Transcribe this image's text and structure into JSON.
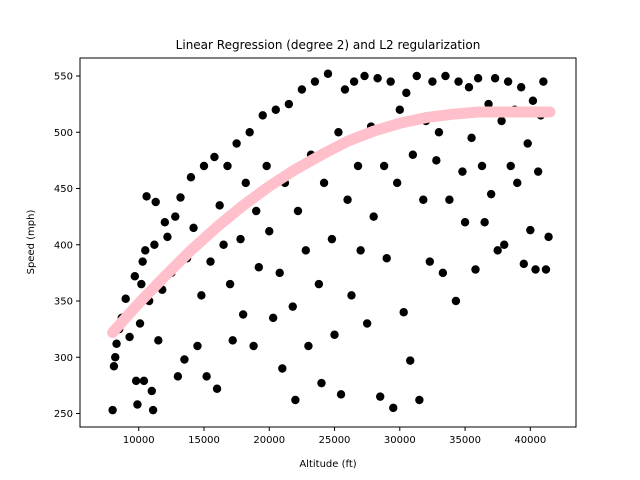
{
  "chart_data": {
    "type": "scatter",
    "title": "Linear Regression (degree 2) and L2 regularization",
    "xlabel": "Altitude (ft)",
    "ylabel": "Speed (mph)",
    "xlim": [
      5500,
      43500
    ],
    "ylim": [
      238,
      566
    ],
    "xticks": [
      10000,
      15000,
      20000,
      25000,
      30000,
      35000,
      40000
    ],
    "yticks": [
      250,
      300,
      350,
      400,
      450,
      500,
      550
    ],
    "grid": false,
    "legend": "none",
    "colors": {
      "points": "#000000",
      "fit": "#ffc0cb"
    },
    "series": [
      {
        "kind": "scatter",
        "points": [
          [
            8000,
            253
          ],
          [
            8100,
            292
          ],
          [
            8200,
            300
          ],
          [
            8300,
            312
          ],
          [
            8500,
            325
          ],
          [
            8700,
            335
          ],
          [
            9000,
            352
          ],
          [
            9300,
            318
          ],
          [
            9500,
            340
          ],
          [
            9700,
            372
          ],
          [
            9800,
            279
          ],
          [
            9900,
            258
          ],
          [
            10100,
            330
          ],
          [
            10200,
            365
          ],
          [
            10300,
            385
          ],
          [
            10400,
            279
          ],
          [
            10500,
            395
          ],
          [
            10600,
            443
          ],
          [
            10800,
            350
          ],
          [
            11000,
            270
          ],
          [
            11100,
            253
          ],
          [
            11200,
            400
          ],
          [
            11300,
            438
          ],
          [
            11500,
            315
          ],
          [
            11800,
            360
          ],
          [
            12000,
            420
          ],
          [
            12200,
            407
          ],
          [
            12500,
            375
          ],
          [
            12800,
            425
          ],
          [
            13000,
            283
          ],
          [
            13200,
            442
          ],
          [
            13500,
            298
          ],
          [
            13700,
            388
          ],
          [
            14000,
            460
          ],
          [
            14200,
            415
          ],
          [
            14500,
            310
          ],
          [
            14800,
            355
          ],
          [
            15000,
            470
          ],
          [
            15200,
            283
          ],
          [
            15500,
            385
          ],
          [
            15800,
            478
          ],
          [
            16000,
            272
          ],
          [
            16200,
            435
          ],
          [
            16500,
            400
          ],
          [
            16800,
            470
          ],
          [
            17000,
            365
          ],
          [
            17200,
            315
          ],
          [
            17500,
            490
          ],
          [
            17800,
            405
          ],
          [
            18000,
            338
          ],
          [
            18200,
            455
          ],
          [
            18500,
            500
          ],
          [
            18800,
            310
          ],
          [
            19000,
            430
          ],
          [
            19200,
            380
          ],
          [
            19500,
            515
          ],
          [
            19800,
            470
          ],
          [
            20000,
            412
          ],
          [
            20300,
            335
          ],
          [
            20500,
            520
          ],
          [
            20800,
            375
          ],
          [
            21000,
            290
          ],
          [
            21200,
            455
          ],
          [
            21500,
            525
          ],
          [
            21800,
            345
          ],
          [
            22000,
            262
          ],
          [
            22200,
            430
          ],
          [
            22500,
            538
          ],
          [
            22800,
            395
          ],
          [
            23000,
            310
          ],
          [
            23200,
            480
          ],
          [
            23500,
            545
          ],
          [
            23800,
            365
          ],
          [
            24000,
            277
          ],
          [
            24200,
            455
          ],
          [
            24500,
            552
          ],
          [
            24800,
            405
          ],
          [
            25000,
            320
          ],
          [
            25300,
            500
          ],
          [
            25500,
            267
          ],
          [
            25800,
            538
          ],
          [
            26000,
            440
          ],
          [
            26300,
            355
          ],
          [
            26500,
            545
          ],
          [
            26800,
            470
          ],
          [
            27000,
            395
          ],
          [
            27300,
            550
          ],
          [
            27500,
            330
          ],
          [
            27800,
            505
          ],
          [
            28000,
            425
          ],
          [
            28300,
            548
          ],
          [
            28500,
            265
          ],
          [
            28800,
            470
          ],
          [
            29000,
            388
          ],
          [
            29300,
            545
          ],
          [
            29500,
            255
          ],
          [
            29800,
            455
          ],
          [
            30000,
            520
          ],
          [
            30300,
            340
          ],
          [
            30500,
            535
          ],
          [
            30800,
            297
          ],
          [
            31000,
            480
          ],
          [
            31300,
            550
          ],
          [
            31500,
            262
          ],
          [
            31800,
            440
          ],
          [
            32000,
            510
          ],
          [
            32300,
            385
          ],
          [
            32500,
            545
          ],
          [
            32800,
            475
          ],
          [
            33000,
            500
          ],
          [
            33300,
            375
          ],
          [
            33500,
            550
          ],
          [
            33800,
            440
          ],
          [
            34000,
            515
          ],
          [
            34300,
            350
          ],
          [
            34500,
            545
          ],
          [
            34800,
            465
          ],
          [
            35000,
            420
          ],
          [
            35300,
            540
          ],
          [
            35500,
            495
          ],
          [
            35800,
            378
          ],
          [
            36000,
            548
          ],
          [
            36300,
            470
          ],
          [
            36500,
            420
          ],
          [
            36800,
            525
          ],
          [
            37000,
            445
          ],
          [
            37300,
            548
          ],
          [
            37500,
            395
          ],
          [
            37800,
            510
          ],
          [
            38000,
            400
          ],
          [
            38300,
            545
          ],
          [
            38500,
            470
          ],
          [
            38800,
            520
          ],
          [
            39000,
            455
          ],
          [
            39300,
            540
          ],
          [
            39500,
            383
          ],
          [
            39800,
            490
          ],
          [
            40000,
            413
          ],
          [
            40200,
            528
          ],
          [
            40400,
            378
          ],
          [
            40600,
            465
          ],
          [
            40800,
            515
          ],
          [
            41000,
            545
          ],
          [
            41200,
            378
          ],
          [
            41400,
            407
          ]
        ]
      },
      {
        "kind": "fit",
        "x": [
          8000,
          10000,
          12000,
          14000,
          16000,
          18000,
          20000,
          22000,
          24000,
          26000,
          28000,
          30000,
          32000,
          34000,
          36000,
          38000,
          40000,
          41500
        ],
        "y": [
          322,
          348,
          372,
          395,
          416,
          435,
          452,
          467,
          480,
          492,
          501,
          508,
          513,
          516,
          518,
          518,
          518,
          518
        ]
      }
    ]
  }
}
